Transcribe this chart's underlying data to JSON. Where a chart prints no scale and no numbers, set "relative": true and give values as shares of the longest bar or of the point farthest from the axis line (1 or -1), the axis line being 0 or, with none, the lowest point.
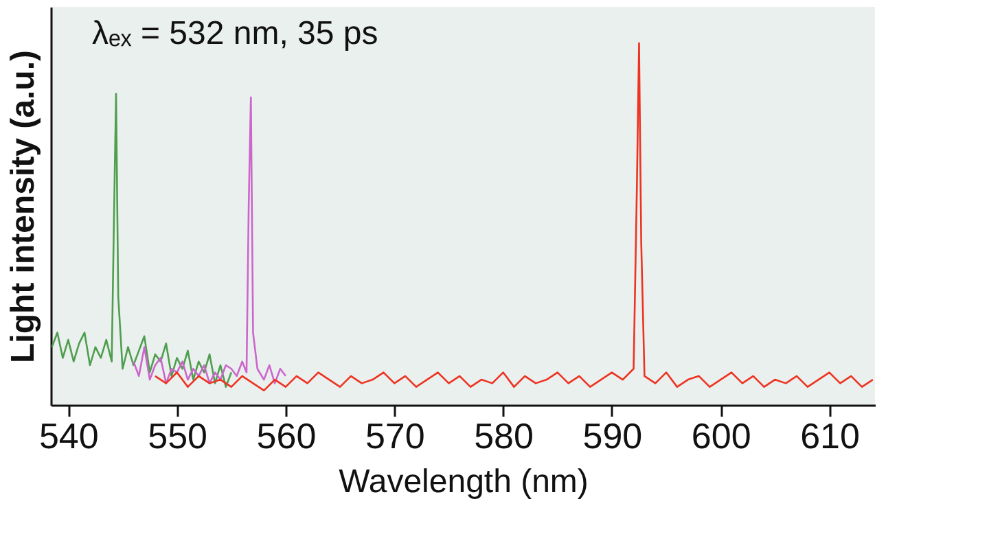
{
  "chart_data": {
    "type": "line",
    "relative": true,
    "xlabel": "Wavelength (nm)",
    "ylabel": "Light intensity (a.u.)",
    "annotations": [
      "λₑₓ = 532 nm, 35 ps"
    ],
    "xlim": [
      538.4,
      614.2
    ],
    "xticks": [
      540,
      550,
      560,
      570,
      580,
      590,
      600,
      610
    ],
    "grid": false,
    "legend": false,
    "series": [
      {
        "color": "#4f9e4f",
        "x": [
          538.5,
          539,
          539.5,
          540,
          540.5,
          541,
          541.5,
          542,
          542.5,
          543,
          543.5,
          544,
          544.2,
          544.4,
          544.6,
          545,
          545.5,
          546,
          546.5,
          547,
          547.5,
          548,
          548.5,
          549,
          549.5,
          550,
          550.5,
          551,
          551.5,
          552,
          552.5,
          553,
          553.5,
          554,
          554.5,
          555
        ],
        "values": [
          0.16,
          0.2,
          0.13,
          0.18,
          0.12,
          0.17,
          0.2,
          0.11,
          0.16,
          0.13,
          0.18,
          0.12,
          0.5,
          0.86,
          0.3,
          0.1,
          0.16,
          0.11,
          0.15,
          0.19,
          0.09,
          0.14,
          0.12,
          0.17,
          0.08,
          0.13,
          0.1,
          0.15,
          0.07,
          0.12,
          0.09,
          0.14,
          0.06,
          0.11,
          0.05,
          0.09
        ]
      },
      {
        "color": "#cc66cc",
        "x": [
          546,
          546.5,
          547,
          547.5,
          548,
          548.5,
          549,
          549.5,
          550,
          550.5,
          551,
          551.5,
          552,
          552.5,
          553,
          553.5,
          554,
          554.5,
          555,
          555.5,
          556,
          556.4,
          556.6,
          556.8,
          557,
          557.4,
          558,
          558.5,
          559,
          559.5,
          560
        ],
        "values": [
          0.12,
          0.08,
          0.16,
          0.07,
          0.11,
          0.13,
          0.06,
          0.1,
          0.09,
          0.12,
          0.07,
          0.1,
          0.08,
          0.11,
          0.06,
          0.09,
          0.07,
          0.11,
          0.1,
          0.08,
          0.12,
          0.09,
          0.55,
          0.85,
          0.2,
          0.1,
          0.07,
          0.11,
          0.06,
          0.1,
          0.08
        ]
      },
      {
        "color": "#ee3322",
        "x": [
          548,
          549,
          550,
          551,
          552,
          553,
          554,
          555,
          556,
          557,
          558,
          559,
          560,
          561,
          562,
          563,
          564,
          565,
          566,
          567,
          568,
          569,
          570,
          571,
          572,
          573,
          574,
          575,
          576,
          577,
          578,
          579,
          580,
          581,
          582,
          583,
          584,
          585,
          586,
          587,
          588,
          589,
          590,
          591,
          592,
          592.3,
          592.5,
          592.7,
          593,
          594,
          595,
          596,
          597,
          598,
          599,
          600,
          601,
          602,
          603,
          604,
          605,
          606,
          607,
          608,
          609,
          610,
          611,
          612,
          613,
          614
        ],
        "values": [
          0.08,
          0.06,
          0.09,
          0.05,
          0.08,
          0.06,
          0.07,
          0.05,
          0.08,
          0.06,
          0.04,
          0.07,
          0.05,
          0.08,
          0.06,
          0.09,
          0.07,
          0.05,
          0.08,
          0.06,
          0.07,
          0.09,
          0.06,
          0.08,
          0.05,
          0.07,
          0.09,
          0.06,
          0.08,
          0.05,
          0.07,
          0.06,
          0.09,
          0.05,
          0.08,
          0.06,
          0.07,
          0.09,
          0.06,
          0.08,
          0.05,
          0.07,
          0.09,
          0.07,
          0.1,
          0.6,
          1,
          0.45,
          0.08,
          0.06,
          0.09,
          0.05,
          0.07,
          0.08,
          0.05,
          0.07,
          0.09,
          0.06,
          0.08,
          0.05,
          0.07,
          0.06,
          0.08,
          0.05,
          0.07,
          0.09,
          0.06,
          0.08,
          0.05,
          0.07
        ]
      }
    ]
  }
}
